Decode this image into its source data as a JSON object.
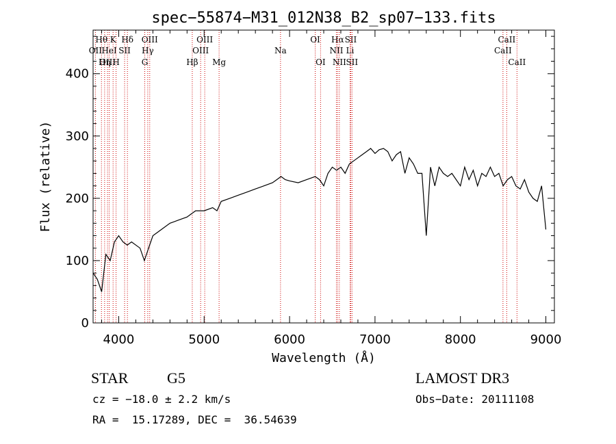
{
  "chart_data": {
    "type": "line",
    "title": "spec−55874−M31_012N38_B2_sp07−133.fits",
    "xlabel": "Wavelength (Å)",
    "ylabel": "Flux (relative)",
    "xlim": [
      3700,
      9100
    ],
    "ylim": [
      0,
      470
    ],
    "xticks": [
      4000,
      5000,
      6000,
      7000,
      8000,
      9000
    ],
    "yticks": [
      0,
      100,
      200,
      300,
      400
    ],
    "grid": false,
    "series": [
      {
        "name": "spectrum",
        "x": [
          3700,
          3750,
          3800,
          3850,
          3900,
          3950,
          4000,
          4050,
          4100,
          4150,
          4200,
          4250,
          4300,
          4350,
          4400,
          4450,
          4500,
          4600,
          4700,
          4800,
          4850,
          4900,
          5000,
          5100,
          5150,
          5200,
          5300,
          5400,
          5500,
          5600,
          5700,
          5800,
          5850,
          5900,
          5950,
          6000,
          6100,
          6200,
          6300,
          6350,
          6400,
          6450,
          6500,
          6550,
          6600,
          6650,
          6700,
          6750,
          6800,
          6850,
          6900,
          6950,
          7000,
          7050,
          7100,
          7150,
          7200,
          7250,
          7300,
          7350,
          7400,
          7450,
          7500,
          7550,
          7600,
          7650,
          7700,
          7750,
          7800,
          7850,
          7900,
          7950,
          8000,
          8050,
          8100,
          8150,
          8200,
          8250,
          8300,
          8350,
          8400,
          8450,
          8500,
          8550,
          8600,
          8650,
          8700,
          8750,
          8800,
          8850,
          8900,
          8950,
          9000
        ],
        "y": [
          80,
          70,
          50,
          110,
          100,
          130,
          140,
          130,
          125,
          130,
          125,
          120,
          100,
          120,
          140,
          145,
          150,
          160,
          165,
          170,
          175,
          180,
          180,
          185,
          180,
          195,
          200,
          205,
          210,
          215,
          220,
          225,
          230,
          235,
          230,
          228,
          225,
          230,
          235,
          230,
          220,
          240,
          250,
          245,
          250,
          240,
          255,
          260,
          265,
          270,
          275,
          280,
          272,
          278,
          280,
          275,
          260,
          270,
          275,
          240,
          265,
          255,
          240,
          240,
          140,
          250,
          220,
          250,
          240,
          235,
          240,
          230,
          220,
          250,
          230,
          245,
          220,
          240,
          235,
          250,
          235,
          240,
          220,
          230,
          235,
          220,
          215,
          230,
          210,
          200,
          195,
          220,
          150
        ]
      }
    ],
    "line_markers": [
      {
        "label": "Hθ",
        "wavelength": 3798,
        "row": 1
      },
      {
        "label": "OII",
        "wavelength": 3727,
        "row": 2
      },
      {
        "label": "OIII",
        "wavelength": 3869,
        "row": 3
      },
      {
        "label": "K",
        "wavelength": 3934,
        "row": 1
      },
      {
        "label": "HeI",
        "wavelength": 3889,
        "row": 2
      },
      {
        "label": "Hη",
        "wavelength": 3835,
        "row": 3
      },
      {
        "label": "SII",
        "wavelength": 4069,
        "row": 2
      },
      {
        "label": "H",
        "wavelength": 3969,
        "row": 3
      },
      {
        "label": "Hδ",
        "wavelength": 4102,
        "row": 1
      },
      {
        "label": "OIII",
        "wavelength": 4363,
        "row": 1
      },
      {
        "label": "Hγ",
        "wavelength": 4340,
        "row": 2
      },
      {
        "label": "G",
        "wavelength": 4305,
        "row": 3
      },
      {
        "label": "Hβ",
        "wavelength": 4861,
        "row": 3
      },
      {
        "label": "OIII",
        "wavelength": 5007,
        "row": 1
      },
      {
        "label": "OIII",
        "wavelength": 4959,
        "row": 2
      },
      {
        "label": "Mg",
        "wavelength": 5175,
        "row": 3
      },
      {
        "label": "Na",
        "wavelength": 5894,
        "row": 2
      },
      {
        "label": "OI",
        "wavelength": 6300,
        "row": 1
      },
      {
        "label": "OI",
        "wavelength": 6363,
        "row": 3
      },
      {
        "label": "Hα",
        "wavelength": 6563,
        "row": 1
      },
      {
        "label": "NII",
        "wavelength": 6548,
        "row": 2
      },
      {
        "label": "NII",
        "wavelength": 6583,
        "row": 3
      },
      {
        "label": "SII",
        "wavelength": 6716,
        "row": 1
      },
      {
        "label": "Li",
        "wavelength": 6708,
        "row": 2
      },
      {
        "label": "SII",
        "wavelength": 6731,
        "row": 3
      },
      {
        "label": "CaII",
        "wavelength": 8542,
        "row": 1
      },
      {
        "label": "CaII",
        "wavelength": 8498,
        "row": 2
      },
      {
        "label": "CaII",
        "wavelength": 8662,
        "row": 3
      }
    ]
  },
  "info": {
    "class_text": "STAR",
    "subclass_text": "G5",
    "survey": "LAMOST DR3",
    "cz": "cz = −18.0 ± 2.2 km/s",
    "obs_date": "Obs−Date: 20111108",
    "coords": "RA =  15.17289, DEC =  36.54639"
  },
  "colors": {
    "axis": "#000000",
    "spectrum": "#000000",
    "marker_line": "#cc0000"
  }
}
